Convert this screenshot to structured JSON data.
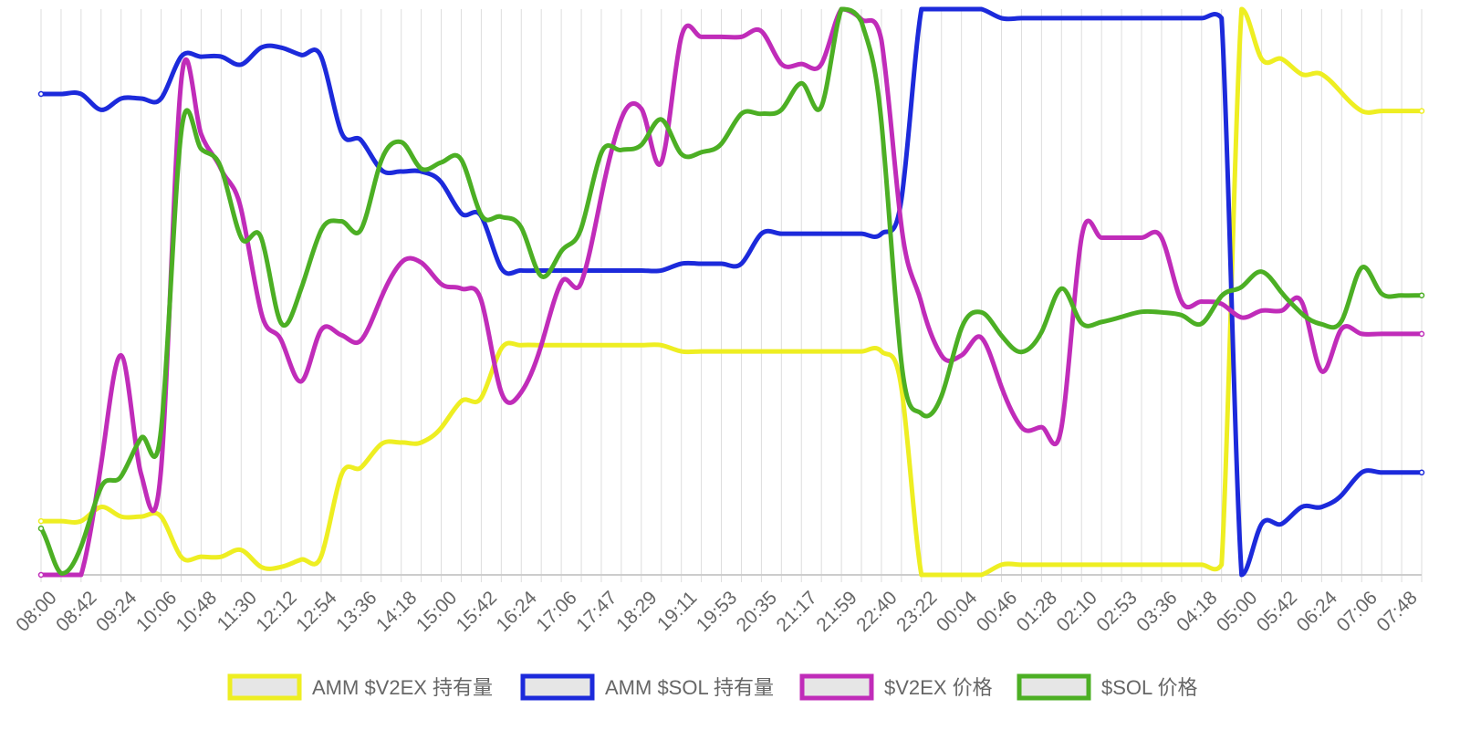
{
  "chart_data": {
    "type": "line",
    "title": "",
    "xlabel": "",
    "ylabel": "",
    "grid": "vertical",
    "legend_position": "bottom",
    "x": [
      "08:00",
      "08:21",
      "08:42",
      "09:03",
      "09:24",
      "09:45",
      "10:06",
      "10:27",
      "10:48",
      "11:09",
      "11:30",
      "11:51",
      "12:12",
      "12:33",
      "12:54",
      "13:15",
      "13:36",
      "13:57",
      "14:18",
      "14:39",
      "15:00",
      "15:21",
      "15:42",
      "16:03",
      "16:24",
      "16:45",
      "17:06",
      "17:26",
      "17:47",
      "18:08",
      "18:29",
      "18:50",
      "19:11",
      "19:32",
      "19:53",
      "20:14",
      "20:35",
      "20:56",
      "21:17",
      "21:38",
      "21:59",
      "22:20",
      "22:40",
      "23:01",
      "23:22",
      "23:43",
      "00:04",
      "00:25",
      "00:46",
      "01:07",
      "01:28",
      "01:49",
      "02:10",
      "02:31",
      "02:53",
      "03:14",
      "03:36",
      "03:57",
      "04:18",
      "04:39",
      "05:00",
      "05:21",
      "05:42",
      "06:03",
      "06:24",
      "06:45",
      "07:06",
      "07:27",
      "07:48",
      "08:09"
    ],
    "tick_labels": [
      "08:00",
      "08:42",
      "09:24",
      "10:06",
      "10:48",
      "11:30",
      "12:12",
      "12:54",
      "13:36",
      "14:18",
      "15:00",
      "15:42",
      "16:24",
      "17:06",
      "17:47",
      "18:29",
      "19:11",
      "19:53",
      "20:35",
      "21:17",
      "21:59",
      "22:40",
      "23:22",
      "00:04",
      "00:46",
      "01:28",
      "02:10",
      "02:53",
      "03:36",
      "04:18",
      "05:00",
      "05:42",
      "06:24",
      "07:06",
      "07:48"
    ],
    "ylim": [
      0,
      100
    ],
    "series": [
      {
        "name": "AMM $V2EX 持有量",
        "color": "#eeee22",
        "values": [
          9.5,
          9.5,
          9.5,
          12,
          10.3,
          10.3,
          10.3,
          3.2,
          3.2,
          3.2,
          4.4,
          1.4,
          1.4,
          2.7,
          3.3,
          17.6,
          19,
          23.1,
          23.4,
          23.4,
          26,
          30.7,
          31.3,
          40,
          40.6,
          40.6,
          40.6,
          40.6,
          40.6,
          40.6,
          40.6,
          40.6,
          39.5,
          39.5,
          39.5,
          39.5,
          39.5,
          39.5,
          39.5,
          39.5,
          39.5,
          39.5,
          39.5,
          33,
          0,
          0,
          0,
          0,
          1.8,
          1.8,
          1.8,
          1.8,
          1.8,
          1.8,
          1.8,
          1.8,
          1.8,
          1.8,
          1.8,
          1.8,
          100,
          91.2,
          91.2,
          88.5,
          88.5,
          85.2,
          82,
          82,
          82,
          82
        ]
      },
      {
        "name": "AMM $SOL 持有量",
        "color": "#1c2adb",
        "values": [
          85,
          85,
          85,
          82.2,
          84.2,
          84.2,
          84.2,
          91.6,
          91.6,
          91.6,
          90.2,
          93.2,
          93.2,
          91.9,
          91.6,
          78.3,
          76.8,
          71.6,
          71.3,
          71.3,
          69.4,
          63.9,
          63.4,
          54.2,
          53.8,
          53.8,
          53.8,
          53.8,
          53.8,
          53.8,
          53.8,
          53.8,
          55,
          55,
          55,
          55,
          60.3,
          60.3,
          60.3,
          60.3,
          60.3,
          60.3,
          60.3,
          66.4,
          100,
          100,
          100,
          100,
          98.4,
          98.4,
          98.4,
          98.4,
          98.4,
          98.4,
          98.4,
          98.4,
          98.4,
          98.4,
          98.4,
          98.4,
          0,
          9,
          9,
          12,
          12,
          14.1,
          18.1,
          18.1,
          18.1,
          18.1
        ]
      },
      {
        "name": "$V2EX 价格",
        "color": "#c02cb9",
        "values": [
          0,
          0,
          0,
          19.5,
          38.8,
          17.8,
          18.8,
          87.1,
          77.9,
          71.7,
          64.6,
          46.4,
          41.5,
          34.2,
          43.3,
          42.4,
          41.5,
          49,
          55.2,
          55.2,
          51.4,
          50.6,
          48.5,
          32.3,
          32.3,
          40.6,
          51.7,
          51.7,
          67,
          80.6,
          82.4,
          72.9,
          95.1,
          95.1,
          95.1,
          95.1,
          96.1,
          90.3,
          90.3,
          90.3,
          100,
          98.2,
          94.5,
          61.6,
          48,
          38.8,
          38.8,
          41.9,
          33.2,
          26.1,
          26.1,
          26.1,
          59.6,
          59.6,
          59.6,
          59.6,
          59.6,
          48.3,
          48.3,
          47.9,
          45.5,
          46.7,
          46.7,
          48.3,
          36,
          43.5,
          42.6,
          42.6,
          42.6,
          42.6
        ]
      },
      {
        "name": "$SOL 价格",
        "color": "#4caf24",
        "values": [
          8.2,
          0.3,
          5,
          15.5,
          17.4,
          24.2,
          25.7,
          78.1,
          75.3,
          71.9,
          59.6,
          59.6,
          44.5,
          50.6,
          60.9,
          62.5,
          61.1,
          73.2,
          76.5,
          71.8,
          72.9,
          73.4,
          63.6,
          63.3,
          61.4,
          52.8,
          57.2,
          61.3,
          74.6,
          75.1,
          76,
          80.5,
          74.4,
          74.7,
          76.2,
          81.5,
          81.5,
          82.2,
          86.9,
          82.8,
          100,
          97.8,
          80,
          37.5,
          28.5,
          31.6,
          43.6,
          46.4,
          42.3,
          39.4,
          42.9,
          50.6,
          44.5,
          44.7,
          45.6,
          46.5,
          46.4,
          45.9,
          44.4,
          49.3,
          50.9,
          53.6,
          49.9,
          46.2,
          44.3,
          44.9,
          54.3,
          49.7,
          49.4,
          49.4
        ]
      }
    ]
  }
}
